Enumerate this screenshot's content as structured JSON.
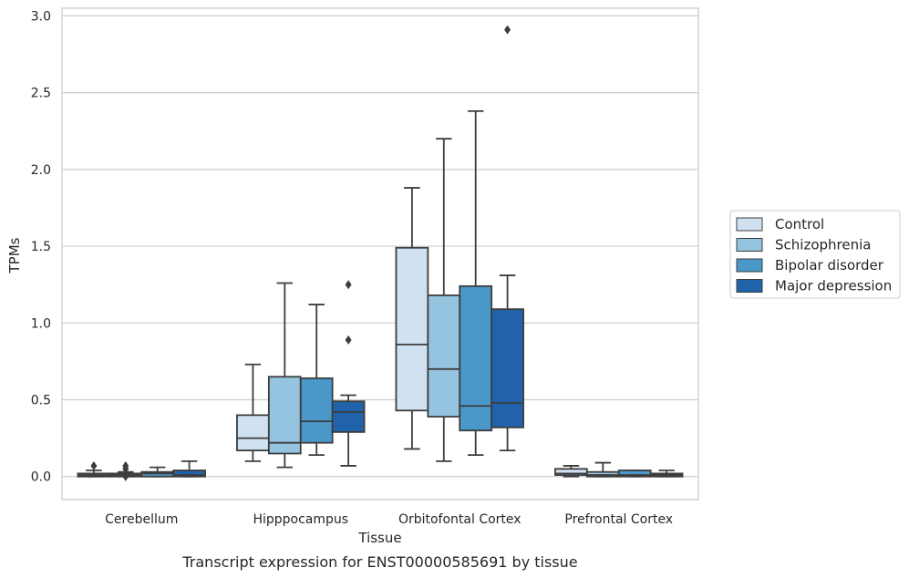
{
  "chart_data": {
    "type": "box",
    "ylabel": "TPMs",
    "xlabel": "Tissue",
    "caption": "Transcript expression for ENST00000585691 by tissue",
    "ylim": [
      -0.15,
      3.05
    ],
    "yticks": [
      0.0,
      0.5,
      1.0,
      1.5,
      2.0,
      2.5,
      3.0
    ],
    "ytick_labels": [
      "0.0",
      "0.5",
      "1.0",
      "1.5",
      "2.0",
      "2.5",
      "3.0"
    ],
    "grid": "horizontal",
    "legend_position": "right",
    "categories": [
      "Cerebellum",
      "Hipppocampus",
      "Orbitofontal Cortex",
      "Prefrontal Cortex"
    ],
    "series": [
      {
        "name": "Control",
        "color": "#d0e1f2",
        "boxes": [
          {
            "whislo": 0.0,
            "q1": 0.0,
            "med": 0.01,
            "q3": 0.02,
            "whishi": 0.04,
            "fliers": [
              0.07
            ]
          },
          {
            "whislo": 0.1,
            "q1": 0.17,
            "med": 0.25,
            "q3": 0.4,
            "whishi": 0.73,
            "fliers": []
          },
          {
            "whislo": 0.18,
            "q1": 0.43,
            "med": 0.86,
            "q3": 1.49,
            "whishi": 1.88,
            "fliers": []
          },
          {
            "whislo": 0.0,
            "q1": 0.01,
            "med": 0.02,
            "q3": 0.05,
            "whishi": 0.07,
            "fliers": []
          }
        ]
      },
      {
        "name": "Schizophrenia",
        "color": "#94c4df",
        "boxes": [
          {
            "whislo": 0.0,
            "q1": 0.0,
            "med": 0.01,
            "q3": 0.02,
            "whishi": 0.03,
            "fliers": [
              0.07,
              0.05,
              0.0
            ]
          },
          {
            "whislo": 0.06,
            "q1": 0.15,
            "med": 0.22,
            "q3": 0.65,
            "whishi": 1.26,
            "fliers": []
          },
          {
            "whislo": 0.1,
            "q1": 0.39,
            "med": 0.7,
            "q3": 1.18,
            "whishi": 2.2,
            "fliers": []
          },
          {
            "whislo": 0.0,
            "q1": 0.0,
            "med": 0.01,
            "q3": 0.03,
            "whishi": 0.09,
            "fliers": []
          }
        ]
      },
      {
        "name": "Bipolar disorder",
        "color": "#4a98c9",
        "boxes": [
          {
            "whislo": 0.0,
            "q1": 0.0,
            "med": 0.02,
            "q3": 0.03,
            "whishi": 0.06,
            "fliers": []
          },
          {
            "whislo": 0.14,
            "q1": 0.22,
            "med": 0.36,
            "q3": 0.64,
            "whishi": 1.12,
            "fliers": []
          },
          {
            "whislo": 0.14,
            "q1": 0.3,
            "med": 0.46,
            "q3": 1.24,
            "whishi": 2.38,
            "fliers": []
          },
          {
            "whislo": 0.0,
            "q1": 0.0,
            "med": 0.01,
            "q3": 0.04,
            "whishi": 0.04,
            "fliers": []
          }
        ]
      },
      {
        "name": "Major depression",
        "color": "#2163aa",
        "boxes": [
          {
            "whislo": 0.0,
            "q1": 0.0,
            "med": 0.01,
            "q3": 0.04,
            "whishi": 0.1,
            "fliers": []
          },
          {
            "whislo": 0.07,
            "q1": 0.29,
            "med": 0.42,
            "q3": 0.49,
            "whishi": 0.53,
            "fliers": [
              0.89,
              1.25
            ]
          },
          {
            "whislo": 0.17,
            "q1": 0.32,
            "med": 0.48,
            "q3": 1.09,
            "whishi": 1.31,
            "fliers": [
              2.91
            ]
          },
          {
            "whislo": 0.0,
            "q1": 0.0,
            "med": 0.01,
            "q3": 0.02,
            "whishi": 0.04,
            "fliers": []
          }
        ]
      }
    ]
  }
}
